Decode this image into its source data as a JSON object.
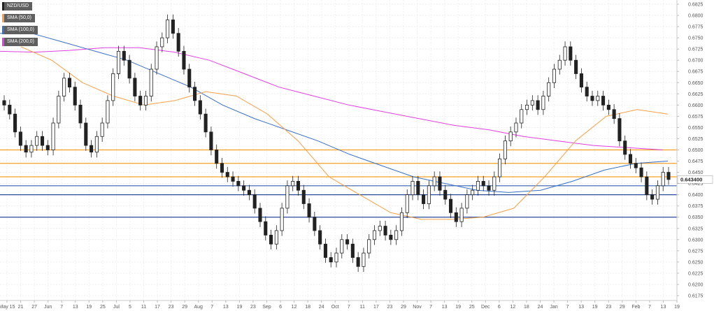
{
  "chart_data": {
    "type": "candlestick",
    "legend": [
      {
        "label": "NZD/USD",
        "color": "#222222"
      },
      {
        "label": "SMA (50,0)",
        "color": "#f5a04a"
      },
      {
        "label": "SMA (100,0)",
        "color": "#3a6fc4"
      },
      {
        "label": "SMA (200,0)",
        "color": "#e040e0"
      }
    ],
    "y_ticks": [
      "0.6825",
      "0.6800",
      "0.6775",
      "0.6750",
      "0.6725",
      "0.6700",
      "0.6675",
      "0.6650",
      "0.6625",
      "0.6600",
      "0.6575",
      "0.6550",
      "0.6525",
      "0.6500",
      "0.6475",
      "0.6450",
      "0.6425",
      "0.6400",
      "0.6375",
      "0.6350",
      "0.6325",
      "0.6300",
      "0.6275",
      "0.6250",
      "0.6225",
      "0.6200",
      "0.6175"
    ],
    "ylim": [
      0.6175,
      0.6825
    ],
    "price_label": "0.643400",
    "last_price": 0.6434,
    "x_ticks": [
      "May 15",
      "21",
      "27",
      "Jun",
      "7",
      "13",
      "19",
      "25",
      "Jul",
      "5",
      "11",
      "17",
      "23",
      "29",
      "Aug",
      "7",
      "13",
      "19",
      "23",
      "Sep",
      "6",
      "12",
      "18",
      "24",
      "Oct",
      "7",
      "11",
      "17",
      "23",
      "29",
      "Nov",
      "7",
      "13",
      "19",
      "25",
      "Dec",
      "6",
      "12",
      "18",
      "24",
      "Jan",
      "7",
      "13",
      "19",
      "23",
      "29",
      "Feb",
      "7",
      "13",
      "19"
    ],
    "horizontal_levels": [
      {
        "price": 0.65,
        "color": "#f5a020"
      },
      {
        "price": 0.647,
        "color": "#f5a020"
      },
      {
        "price": 0.644,
        "color": "#f5a020"
      },
      {
        "price": 0.642,
        "color": "#3a5fb0"
      },
      {
        "price": 0.64,
        "color": "#2a4a9a"
      },
      {
        "price": 0.635,
        "color": "#2a4a9a"
      }
    ],
    "sma200": [
      0.672,
      0.6718,
      0.6722,
      0.6728,
      0.6728,
      0.6718,
      0.67,
      0.667,
      0.664,
      0.662,
      0.66,
      0.6585,
      0.657,
      0.6555,
      0.6545,
      0.653,
      0.652,
      0.651,
      0.6505,
      0.65
    ],
    "sma100": [
      0.676,
      0.676,
      0.674,
      0.672,
      0.67,
      0.667,
      0.664,
      0.66,
      0.657,
      0.6545,
      0.652,
      0.649,
      0.6465,
      0.644,
      0.6425,
      0.641,
      0.6405,
      0.641,
      0.643,
      0.6455,
      0.647,
      0.6475
    ],
    "sma50": [
      0.673,
      0.67,
      0.665,
      0.662,
      0.66,
      0.661,
      0.663,
      0.662,
      0.658,
      0.652,
      0.644,
      0.64,
      0.636,
      0.6345,
      0.6345,
      0.635,
      0.637,
      0.644,
      0.652,
      0.6575,
      0.659,
      0.658
    ],
    "closes": [
      0.66,
      0.658,
      0.654,
      0.651,
      0.6495,
      0.651,
      0.653,
      0.651,
      0.65,
      0.656,
      0.662,
      0.666,
      0.664,
      0.66,
      0.656,
      0.651,
      0.6495,
      0.653,
      0.656,
      0.661,
      0.667,
      0.672,
      0.67,
      0.666,
      0.662,
      0.66,
      0.662,
      0.668,
      0.673,
      0.675,
      0.679,
      0.676,
      0.672,
      0.668,
      0.664,
      0.661,
      0.658,
      0.654,
      0.65,
      0.647,
      0.645,
      0.644,
      0.643,
      0.642,
      0.641,
      0.64,
      0.637,
      0.634,
      0.631,
      0.629,
      0.632,
      0.637,
      0.642,
      0.643,
      0.641,
      0.638,
      0.635,
      0.632,
      0.629,
      0.626,
      0.625,
      0.627,
      0.63,
      0.629,
      0.626,
      0.624,
      0.627,
      0.63,
      0.632,
      0.633,
      0.631,
      0.63,
      0.632,
      0.636,
      0.64,
      0.643,
      0.64,
      0.638,
      0.642,
      0.644,
      0.641,
      0.639,
      0.636,
      0.634,
      0.637,
      0.64,
      0.641,
      0.643,
      0.642,
      0.641,
      0.644,
      0.648,
      0.652,
      0.654,
      0.656,
      0.659,
      0.66,
      0.661,
      0.659,
      0.662,
      0.665,
      0.668,
      0.67,
      0.673,
      0.67,
      0.667,
      0.664,
      0.662,
      0.661,
      0.662,
      0.66,
      0.659,
      0.657,
      0.652,
      0.649,
      0.647,
      0.646,
      0.644,
      0.64,
      0.639,
      0.642,
      0.645,
      0.6434
    ]
  }
}
